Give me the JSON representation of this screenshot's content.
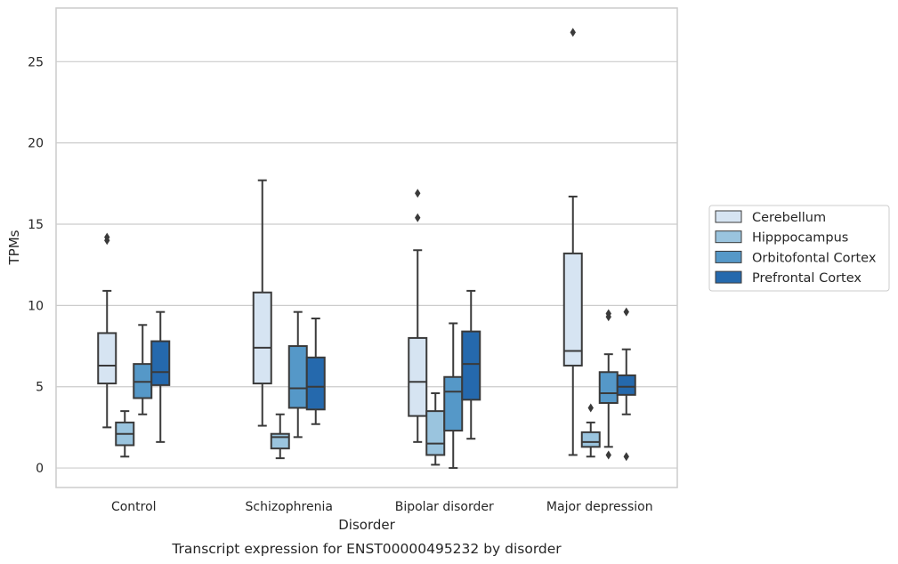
{
  "chart_data": {
    "type": "box",
    "xlabel": "Disorder",
    "ylabel": "TPMs",
    "caption": "Transcript expression for ENST00000495232 by disorder",
    "ylim": [
      -1.2,
      28.3
    ],
    "yticks": [
      0,
      5,
      10,
      15,
      20,
      25
    ],
    "grid": "horizontal",
    "legend_position": "right",
    "categories": [
      "Control",
      "Schizophrenia",
      "Bipolar disorder",
      "Major depression"
    ],
    "series": [
      {
        "name": "Cerebellum",
        "color": "#d6e4f2",
        "boxes": [
          {
            "whisker_low": 2.5,
            "q1": 5.2,
            "median": 6.3,
            "q3": 8.3,
            "whisker_high": 10.9,
            "outliers": [
              14.0,
              14.2
            ]
          },
          {
            "whisker_low": 2.6,
            "q1": 5.2,
            "median": 7.4,
            "q3": 10.8,
            "whisker_high": 17.7,
            "outliers": []
          },
          {
            "whisker_low": 1.6,
            "q1": 3.2,
            "median": 5.3,
            "q3": 8.0,
            "whisker_high": 13.4,
            "outliers": [
              15.4,
              16.9
            ]
          },
          {
            "whisker_low": 0.8,
            "q1": 6.3,
            "median": 7.2,
            "q3": 13.2,
            "whisker_high": 16.7,
            "outliers": [
              26.8
            ]
          }
        ]
      },
      {
        "name": "Hipppocampus",
        "color": "#9ac4de",
        "boxes": [
          {
            "whisker_low": 0.7,
            "q1": 1.4,
            "median": 2.1,
            "q3": 2.8,
            "whisker_high": 3.5,
            "outliers": []
          },
          {
            "whisker_low": 0.6,
            "q1": 1.2,
            "median": 1.9,
            "q3": 2.1,
            "whisker_high": 3.3,
            "outliers": []
          },
          {
            "whisker_low": 0.2,
            "q1": 0.8,
            "median": 1.5,
            "q3": 3.5,
            "whisker_high": 4.6,
            "outliers": []
          },
          {
            "whisker_low": 0.7,
            "q1": 1.3,
            "median": 1.6,
            "q3": 2.2,
            "whisker_high": 2.8,
            "outliers": [
              3.7
            ]
          }
        ]
      },
      {
        "name": "Orbitofontal Cortex",
        "color": "#5598c8",
        "boxes": [
          {
            "whisker_low": 3.3,
            "q1": 4.3,
            "median": 5.3,
            "q3": 6.4,
            "whisker_high": 8.8,
            "outliers": []
          },
          {
            "whisker_low": 1.9,
            "q1": 3.7,
            "median": 4.9,
            "q3": 7.5,
            "whisker_high": 9.6,
            "outliers": []
          },
          {
            "whisker_low": 0.0,
            "q1": 2.3,
            "median": 4.7,
            "q3": 5.6,
            "whisker_high": 8.9,
            "outliers": []
          },
          {
            "whisker_low": 1.3,
            "q1": 4.0,
            "median": 4.6,
            "q3": 5.9,
            "whisker_high": 7.0,
            "outliers": [
              0.8,
              9.3,
              9.5
            ]
          }
        ]
      },
      {
        "name": "Prefrontal Cortex",
        "color": "#2569ad",
        "boxes": [
          {
            "whisker_low": 1.6,
            "q1": 5.1,
            "median": 5.9,
            "q3": 7.8,
            "whisker_high": 9.6,
            "outliers": []
          },
          {
            "whisker_low": 2.7,
            "q1": 3.6,
            "median": 5.0,
            "q3": 6.8,
            "whisker_high": 9.2,
            "outliers": []
          },
          {
            "whisker_low": 1.8,
            "q1": 4.2,
            "median": 6.4,
            "q3": 8.4,
            "whisker_high": 10.9,
            "outliers": []
          },
          {
            "whisker_low": 3.3,
            "q1": 4.5,
            "median": 5.0,
            "q3": 5.7,
            "whisker_high": 7.3,
            "outliers": [
              0.7,
              9.6
            ]
          }
        ]
      }
    ]
  }
}
